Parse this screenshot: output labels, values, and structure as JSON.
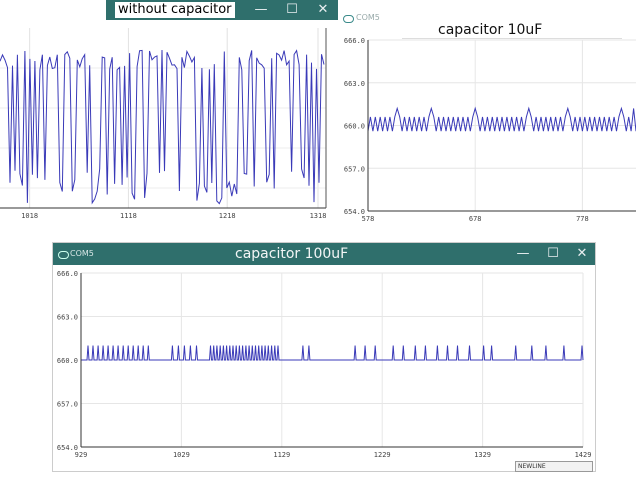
{
  "win1": {
    "title": "without capacitor",
    "btn_min": "—",
    "btn_max": "☐",
    "btn_close": "✕",
    "chart_data": {
      "type": "line",
      "x_ticks": [
        "1018",
        "1118",
        "1218",
        "1318"
      ],
      "xlim": [
        988,
        1318
      ],
      "series_color": "#3a3ab8"
    }
  },
  "win2": {
    "com_label": "COM5",
    "title": "capacitor 10uF",
    "chart_data": {
      "type": "line",
      "y_ticks": [
        "666.0",
        "663.0",
        "660.0",
        "657.0",
        "654.0"
      ],
      "x_ticks": [
        "578",
        "678",
        "778"
      ],
      "ylim": [
        654.0,
        666.0
      ],
      "xlim": [
        578,
        828
      ],
      "baseline": 660.0,
      "noise_band": [
        659.6,
        660.6
      ],
      "spike_value": 661.2,
      "series_color": "#3a3ab8"
    }
  },
  "win3": {
    "com_label": "COM5",
    "title": "capacitor 100uF",
    "btn_min": "—",
    "btn_max": "☐",
    "btn_close": "✕",
    "status": "NEWLINE",
    "chart_data": {
      "type": "line",
      "y_ticks": [
        "666.0",
        "663.0",
        "660.0",
        "657.0",
        "654.0"
      ],
      "x_ticks": [
        "929",
        "1029",
        "1129",
        "1229",
        "1329",
        "1429"
      ],
      "ylim": [
        654.0,
        666.0
      ],
      "xlim": [
        929,
        1429
      ],
      "baseline": 660.0,
      "spike_value": 661.0,
      "series_color": "#3a3ab8"
    }
  }
}
